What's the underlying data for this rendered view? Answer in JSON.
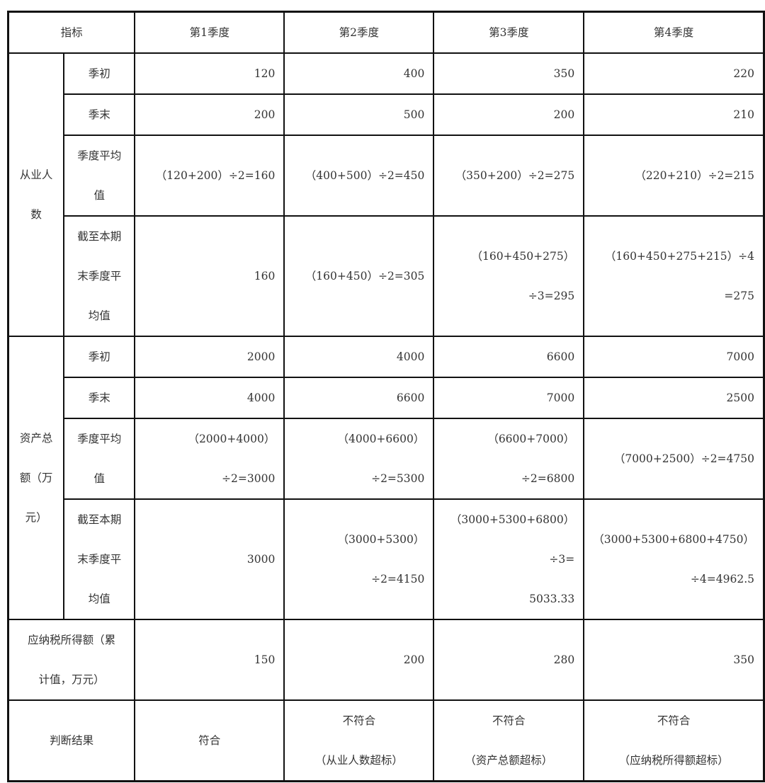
{
  "header": [
    "指标",
    "第1季度",
    "第2季度",
    "第3季度",
    "第4季度"
  ],
  "groups": [
    {
      "label": [
        "从业人",
        "数"
      ],
      "rows": [
        {
          "label": [
            "季初"
          ],
          "values": [
            [
              "120"
            ],
            [
              "400"
            ],
            [
              "350"
            ],
            [
              "220"
            ]
          ]
        },
        {
          "label": [
            "季末"
          ],
          "values": [
            [
              "200"
            ],
            [
              "500"
            ],
            [
              "200"
            ],
            [
              "210"
            ]
          ]
        },
        {
          "label": [
            "季度平均",
            "值"
          ],
          "values": [
            [
              "（120+200）÷2=160"
            ],
            [
              "（400+500）÷2=450"
            ],
            [
              "（350+200）÷2=275"
            ],
            [
              "（220+210）÷2=215"
            ]
          ]
        },
        {
          "label": [
            "截至本期",
            "末季度平",
            "均值"
          ],
          "values": [
            [
              "160"
            ],
            [
              "（160+450）÷2=305"
            ],
            [
              "（160+450+275）",
              "÷3=295"
            ],
            [
              "（160+450+275+215）÷4",
              "=275"
            ]
          ]
        }
      ]
    },
    {
      "label": [
        "资产总",
        "额（万",
        "元）"
      ],
      "rows": [
        {
          "label": [
            "季初"
          ],
          "values": [
            [
              "2000"
            ],
            [
              "4000"
            ],
            [
              "6600"
            ],
            [
              "7000"
            ]
          ]
        },
        {
          "label": [
            "季末"
          ],
          "values": [
            [
              "4000"
            ],
            [
              "6600"
            ],
            [
              "7000"
            ],
            [
              "2500"
            ]
          ]
        },
        {
          "label": [
            "季度平均",
            "值"
          ],
          "values": [
            [
              "（2000+4000）÷2=3000"
            ],
            [
              "（4000+6600）÷2=5300"
            ],
            [
              "（6600+7000）÷2=6800"
            ],
            [
              "（7000+2500）÷2=4750"
            ]
          ]
        },
        {
          "label": [
            "截至本期",
            "末季度平",
            "均值"
          ],
          "values": [
            [
              "3000"
            ],
            [
              "（3000+5300）÷2=4150"
            ],
            [
              "（3000+5300+6800）",
              "÷3=",
              "5033.33"
            ],
            [
              "（3000+5300+6800+4750）",
              "÷4=4962.5"
            ]
          ]
        }
      ]
    }
  ],
  "tax_row": {
    "label": [
      "应纳税所得额（累",
      "计值，万元）"
    ],
    "values": [
      [
        "150"
      ],
      [
        "200"
      ],
      [
        "280"
      ],
      [
        "350"
      ]
    ]
  },
  "result_row": {
    "label": [
      "判断结果"
    ],
    "values": [
      [
        "符合"
      ],
      [
        "不符合",
        "（从业人数超标）"
      ],
      [
        "不符合",
        "（资产总额超标）"
      ],
      [
        "不符合",
        "（应纳税所得额超标）"
      ]
    ]
  }
}
